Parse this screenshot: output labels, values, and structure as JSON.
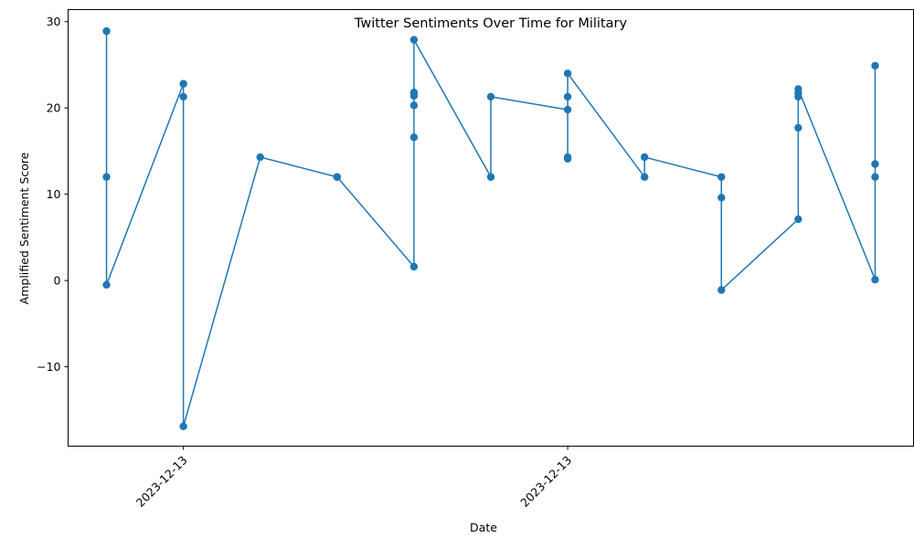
{
  "chart_data": {
    "type": "line",
    "title": "Twitter Sentiments Over Time for Military",
    "xlabel": "Date",
    "ylabel": "Amplified Sentiment Score",
    "ylim": [
      -19.2,
      31.4
    ],
    "xlim": [
      -0.5,
      10.5
    ],
    "y_ticks": [
      -10,
      0,
      10,
      20,
      30
    ],
    "x_ticks": [
      {
        "x": 1,
        "label": "2023-12-13"
      },
      {
        "x": 6,
        "label": "2023-12-13"
      }
    ],
    "grid": false,
    "marker": "circle",
    "color": "#1f77b4",
    "series": [
      {
        "x": [
          0,
          0,
          0,
          1,
          1,
          1,
          2,
          3,
          3,
          4,
          4,
          4,
          4,
          4,
          4,
          5,
          5,
          6,
          6,
          6,
          6,
          6,
          7,
          7,
          8,
          8,
          8,
          9,
          9,
          9,
          9,
          9,
          10,
          10,
          10,
          10
        ],
        "values": [
          28.9,
          12.0,
          -0.5,
          22.8,
          21.3,
          -16.9,
          14.3,
          12.0,
          12.0,
          1.6,
          16.6,
          20.3,
          21.4,
          21.8,
          27.9,
          12.0,
          21.3,
          19.8,
          14.1,
          14.3,
          21.3,
          24.0,
          12.0,
          14.3,
          12.0,
          9.6,
          -1.1,
          7.1,
          17.7,
          21.3,
          21.7,
          22.2,
          0.1,
          12.0,
          13.5,
          24.9
        ]
      }
    ]
  }
}
